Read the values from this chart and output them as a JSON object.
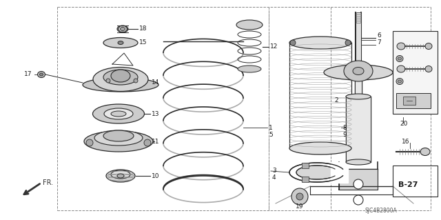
{
  "bg_color": "#ffffff",
  "lc": "#2a2a2a",
  "bc": "#666666",
  "tc": "#1a1a1a",
  "footer": "SJC4B2800A",
  "figsize": [
    6.4,
    3.19
  ],
  "dpi": 100
}
